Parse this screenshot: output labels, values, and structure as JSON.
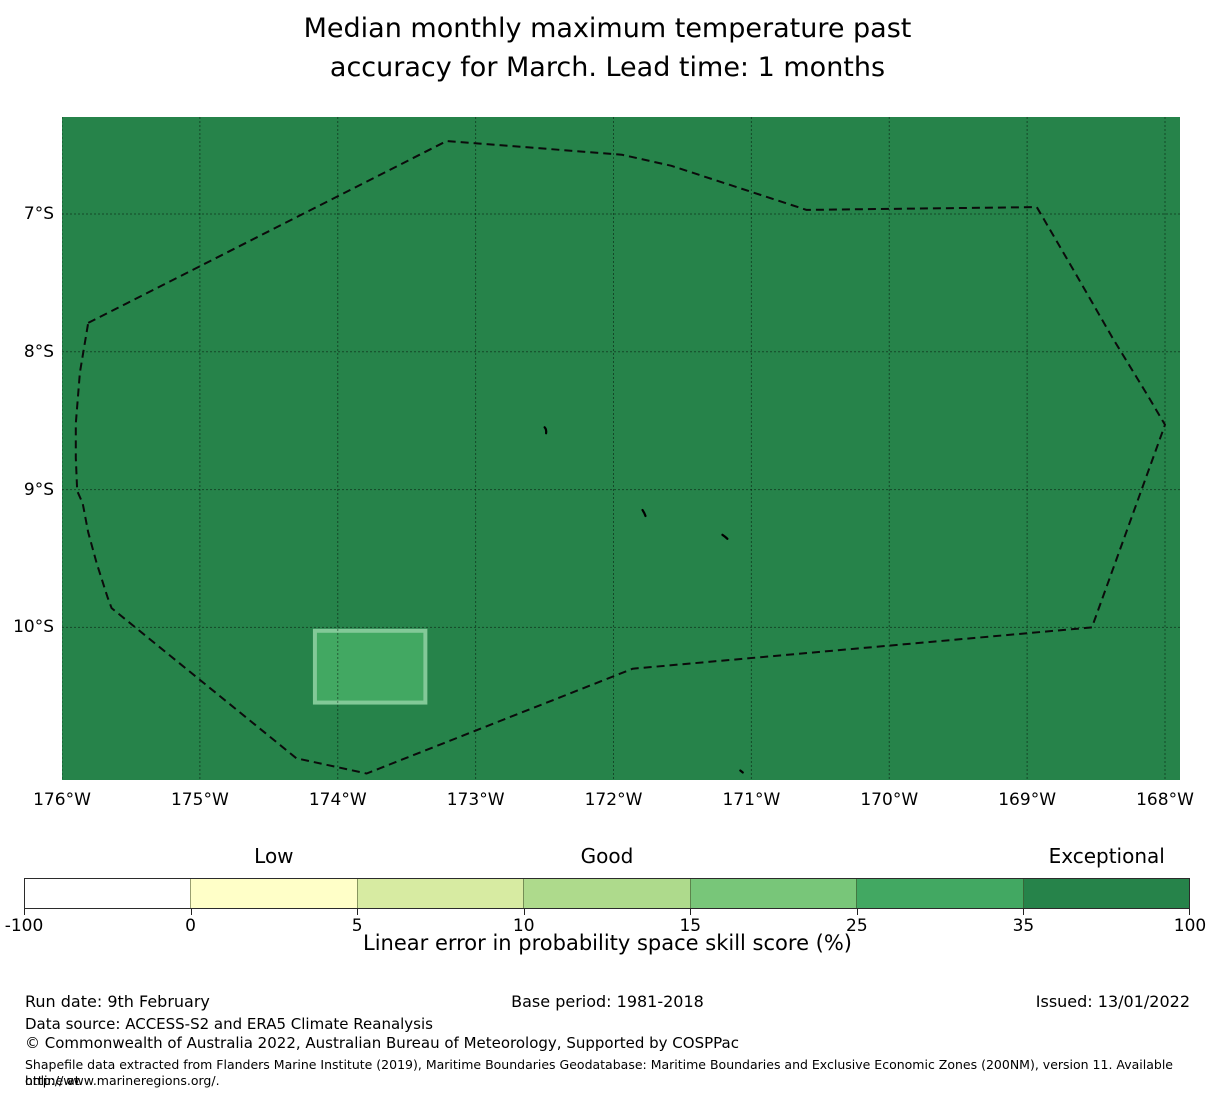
{
  "title": {
    "line1": "Median monthly maximum temperature past",
    "line2": "accuracy for March. Lead time: 1 months"
  },
  "chart_data": {
    "type": "heatmap",
    "subtype": "geographic-skill-map",
    "x_axis": {
      "label": "",
      "ticks": [
        {
          "label": "176°W",
          "lon": 176
        },
        {
          "label": "175°W",
          "lon": 175
        },
        {
          "label": "174°W",
          "lon": 174
        },
        {
          "label": "173°W",
          "lon": 173
        },
        {
          "label": "172°W",
          "lon": 172
        },
        {
          "label": "171°W",
          "lon": 171
        },
        {
          "label": "170°W",
          "lon": 170
        },
        {
          "label": "169°W",
          "lon": 169
        },
        {
          "label": "168°W",
          "lon": 168
        }
      ],
      "range_lon_west": [
        176.0,
        167.89
      ]
    },
    "y_axis": {
      "label": "",
      "ticks": [
        {
          "label": "7°S",
          "lat": 7
        },
        {
          "label": "8°S",
          "lat": 8
        },
        {
          "label": "9°S",
          "lat": 9
        },
        {
          "label": "10°S",
          "lat": 10
        }
      ],
      "range_lat_south": [
        6.3,
        11.11
      ]
    },
    "grid": "on",
    "map_background": {
      "skill_band": "35 to 100",
      "color": "#26834a"
    },
    "cells": [
      {
        "skill_band": "25 to 35",
        "color": "#42a862",
        "edge_color": "#83c998",
        "lon_west_from": 174.18,
        "lon_west_to": 173.35,
        "lat_south_from": 10.01,
        "lat_south_to": 10.56
      }
    ],
    "dashed_boundary": {
      "style": "dashed",
      "color": "#0b0b0b",
      "points_lonW_latS": [
        [
          175.81,
          7.79
        ],
        [
          173.21,
          6.47
        ],
        [
          171.94,
          6.57
        ],
        [
          171.58,
          6.65
        ],
        [
          170.6,
          6.97
        ],
        [
          168.93,
          6.95
        ],
        [
          168.65,
          7.43
        ],
        [
          168.38,
          7.9
        ],
        [
          168.13,
          8.31
        ],
        [
          168.0,
          8.53
        ],
        [
          168.53,
          10.0
        ],
        [
          171.86,
          10.3
        ],
        [
          173.79,
          11.06
        ],
        [
          174.3,
          10.95
        ],
        [
          175.64,
          9.86
        ],
        [
          175.67,
          9.78
        ],
        [
          175.75,
          9.53
        ],
        [
          175.81,
          9.31
        ],
        [
          175.85,
          9.1
        ],
        [
          175.89,
          9.01
        ],
        [
          175.9,
          8.77
        ],
        [
          175.9,
          8.52
        ],
        [
          175.87,
          8.15
        ]
      ]
    },
    "island_marks": [
      {
        "lon": 172.5,
        "lat": 8.57
      },
      {
        "lon": 171.79,
        "lat": 9.17
      },
      {
        "lon": 171.21,
        "lat": 9.35
      },
      {
        "lon": 171.08,
        "lat": 11.06
      }
    ],
    "colorbar": {
      "title": "Linear error in probability space skill score (%)",
      "tick_labels": [
        "-100",
        "0",
        "5",
        "10",
        "15",
        "25",
        "35",
        "100"
      ],
      "segments": [
        {
          "from": "-100",
          "to": "0",
          "color": "#ffffff"
        },
        {
          "from": "0",
          "to": "5",
          "color": "#ffffc8"
        },
        {
          "from": "5",
          "to": "10",
          "color": "#d7eba2"
        },
        {
          "from": "10",
          "to": "15",
          "color": "#aeda8c"
        },
        {
          "from": "15",
          "to": "25",
          "color": "#78c679"
        },
        {
          "from": "25",
          "to": "35",
          "color": "#42a862"
        },
        {
          "from": "35",
          "to": "100",
          "color": "#26834a"
        }
      ],
      "range_labels": [
        {
          "text": "Low",
          "segment_index": 1
        },
        {
          "text": "Good",
          "segment_index": 3
        },
        {
          "text": "Exceptional",
          "segment_index": 6
        }
      ]
    }
  },
  "footer": {
    "run_date": "Run date: 9th February",
    "base_period": "Base period: 1981-2018",
    "issued": "Issued: 13/01/2022",
    "data_source": "Data source: ACCESS-S2 and ERA5 Climate Reanalysis",
    "copyright": "© Commonwealth of Australia 2022, Australian Bureau of Meteorology, Supported by COSPPac",
    "shapefile_line1": "Shapefile data extracted from Flanders Marine Institute (2019), Maritime Boundaries Geodatabase: Maritime Boundaries and Exclusive Economic Zones (200NM), version 11. Available online at",
    "shapefile_line2": "http://www.marineregions.org/."
  }
}
